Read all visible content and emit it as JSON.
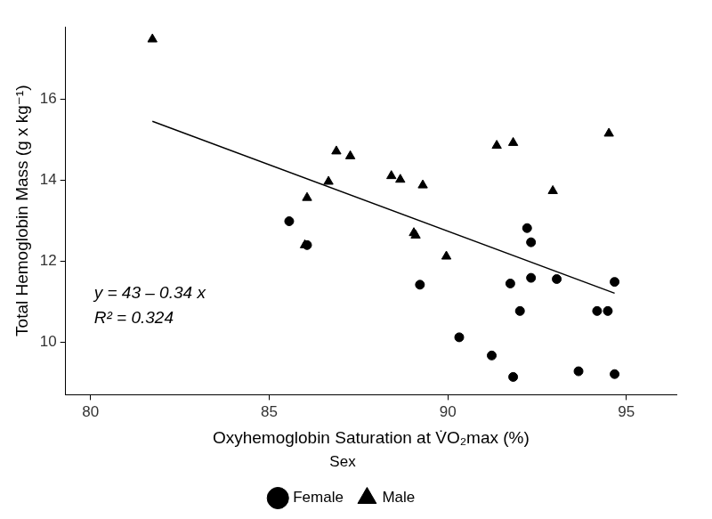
{
  "chart_data": {
    "type": "scatter",
    "x_label": "Oxyhemoglobin Saturation at V̇O₂max (%)",
    "y_label": "Total Hemoglobin Mass (g x kg⁻¹)",
    "legend_title": "Sex",
    "legend": "bottom",
    "grid": false,
    "xlim": [
      79.3,
      96.4
    ],
    "ylim": [
      8.7,
      17.8
    ],
    "xticks": [
      80,
      85,
      90,
      95
    ],
    "yticks": [
      10,
      12,
      14,
      16
    ],
    "annotations": [
      "y = 43 – 0.34 x",
      "R² = 0.324"
    ],
    "series": [
      {
        "name": "Female",
        "color": "#000000",
        "marker": "circle",
        "x": [
          85.56,
          86.06,
          89.22,
          90.32,
          91.23,
          91.75,
          91.83,
          92.02,
          92.22,
          92.33,
          92.33,
          93.05,
          93.66,
          94.18,
          94.48,
          94.67,
          94.67
        ],
        "values": [
          12.99,
          12.4,
          11.42,
          10.12,
          9.67,
          11.45,
          9.14,
          10.77,
          12.82,
          12.47,
          11.59,
          11.56,
          9.28,
          10.77,
          10.77,
          11.49,
          9.21
        ]
      },
      {
        "name": "Male",
        "color": "#000000",
        "marker": "triangle",
        "x": [
          81.73,
          86.06,
          86.0,
          86.66,
          86.88,
          87.27,
          88.42,
          88.67,
          89.05,
          89.1,
          89.3,
          89.96,
          91.37,
          91.83,
          92.94,
          94.51
        ],
        "values": [
          17.49,
          13.57,
          12.4,
          13.97,
          14.72,
          14.6,
          14.11,
          14.02,
          12.7,
          12.64,
          13.88,
          12.12,
          14.86,
          14.93,
          13.74,
          15.16
        ]
      },
      {
        "type": "line",
        "color": "#000000",
        "line_style": "solid",
        "x": [
          81.73,
          94.67
        ],
        "values": [
          15.46,
          11.21
        ]
      }
    ]
  }
}
